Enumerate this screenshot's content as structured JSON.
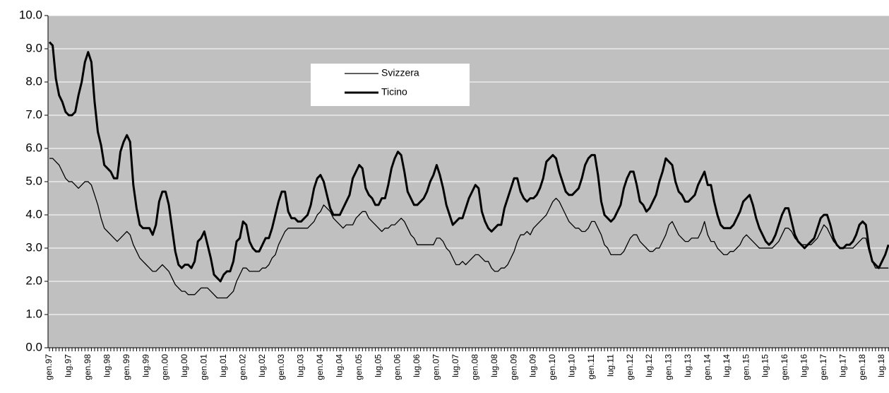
{
  "chart_data": {
    "type": "line",
    "categories": [
      "gen.97",
      null,
      null,
      null,
      null,
      null,
      "lug.97",
      null,
      null,
      null,
      null,
      null,
      "gen.98",
      null,
      null,
      null,
      null,
      null,
      "lug.98",
      null,
      null,
      null,
      null,
      null,
      "gen.99",
      null,
      null,
      null,
      null,
      null,
      "lug.99",
      null,
      null,
      null,
      null,
      null,
      "gen.00",
      null,
      null,
      null,
      null,
      null,
      "lug.00",
      null,
      null,
      null,
      null,
      null,
      "gen.01",
      null,
      null,
      null,
      null,
      null,
      "lug.01",
      null,
      null,
      null,
      null,
      null,
      "gen.02",
      null,
      null,
      null,
      null,
      null,
      "lug.02",
      null,
      null,
      null,
      null,
      null,
      "gen.03",
      null,
      null,
      null,
      null,
      null,
      "lug.03",
      null,
      null,
      null,
      null,
      null,
      "gen.04",
      null,
      null,
      null,
      null,
      null,
      "lug.04",
      null,
      null,
      null,
      null,
      null,
      "gen.05",
      null,
      null,
      null,
      null,
      null,
      "lug.05",
      null,
      null,
      null,
      null,
      null,
      "gen.06",
      null,
      null,
      null,
      null,
      null,
      "lug.06",
      null,
      null,
      null,
      null,
      null,
      "gen.07",
      null,
      null,
      null,
      null,
      null,
      "lug.07",
      null,
      null,
      null,
      null,
      null,
      "gen.08",
      null,
      null,
      null,
      null,
      null,
      "lug.08",
      null,
      null,
      null,
      null,
      null,
      "gen.09",
      null,
      null,
      null,
      null,
      null,
      "lug.09",
      null,
      null,
      null,
      null,
      null,
      "gen.10",
      null,
      null,
      null,
      null,
      null,
      "lug.10",
      null,
      null,
      null,
      null,
      null,
      "gen.11",
      null,
      null,
      null,
      null,
      null,
      "lug.11",
      null,
      null,
      null,
      null,
      null,
      "gen.12",
      null,
      null,
      null,
      null,
      null,
      "lug.12",
      null,
      null,
      null,
      null,
      null,
      "gen.13",
      null,
      null,
      null,
      null,
      null,
      "lug.13",
      null,
      null,
      null,
      null,
      null,
      "gen.14",
      null,
      null,
      null,
      null,
      null,
      "lug.14",
      null,
      null,
      null,
      null,
      null,
      "gen.15",
      null,
      null,
      null,
      null,
      null,
      "lug.15",
      null,
      null,
      null,
      null,
      null,
      "gen.16",
      null,
      null,
      null,
      null,
      null,
      "lug.16",
      null,
      null,
      null,
      null,
      null,
      "gen.17",
      null,
      null,
      null,
      null,
      null,
      "lug.17",
      null,
      null,
      null,
      null,
      null,
      "gen.18",
      null,
      null,
      null,
      null,
      null,
      "lug.18",
      null,
      null
    ],
    "series": [
      {
        "name": "Svizzera",
        "color": "#000000",
        "values": [
          5.7,
          5.7,
          5.6,
          5.5,
          5.3,
          5.1,
          5.0,
          5.0,
          4.9,
          4.8,
          4.9,
          5.0,
          5.0,
          4.9,
          4.6,
          4.3,
          3.9,
          3.6,
          3.5,
          3.4,
          3.3,
          3.2,
          3.3,
          3.4,
          3.5,
          3.4,
          3.1,
          2.9,
          2.7,
          2.6,
          2.5,
          2.4,
          2.3,
          2.3,
          2.4,
          2.5,
          2.4,
          2.3,
          2.1,
          1.9,
          1.8,
          1.7,
          1.7,
          1.6,
          1.6,
          1.6,
          1.7,
          1.8,
          1.8,
          1.8,
          1.7,
          1.6,
          1.5,
          1.5,
          1.5,
          1.5,
          1.6,
          1.7,
          2.0,
          2.2,
          2.4,
          2.4,
          2.3,
          2.3,
          2.3,
          2.3,
          2.4,
          2.4,
          2.5,
          2.7,
          2.8,
          3.1,
          3.3,
          3.5,
          3.6,
          3.6,
          3.6,
          3.6,
          3.6,
          3.6,
          3.6,
          3.7,
          3.8,
          4.0,
          4.1,
          4.3,
          4.2,
          4.1,
          3.9,
          3.8,
          3.7,
          3.6,
          3.7,
          3.7,
          3.7,
          3.9,
          4.0,
          4.1,
          4.1,
          3.9,
          3.8,
          3.7,
          3.6,
          3.5,
          3.6,
          3.6,
          3.7,
          3.7,
          3.8,
          3.9,
          3.8,
          3.6,
          3.4,
          3.3,
          3.1,
          3.1,
          3.1,
          3.1,
          3.1,
          3.1,
          3.3,
          3.3,
          3.2,
          3.0,
          2.9,
          2.7,
          2.5,
          2.5,
          2.6,
          2.5,
          2.6,
          2.7,
          2.8,
          2.8,
          2.7,
          2.6,
          2.6,
          2.4,
          2.3,
          2.3,
          2.4,
          2.4,
          2.5,
          2.7,
          2.9,
          3.2,
          3.4,
          3.4,
          3.5,
          3.4,
          3.6,
          3.7,
          3.8,
          3.9,
          4.0,
          4.2,
          4.4,
          4.5,
          4.4,
          4.2,
          4.0,
          3.8,
          3.7,
          3.6,
          3.6,
          3.5,
          3.5,
          3.6,
          3.8,
          3.8,
          3.6,
          3.4,
          3.1,
          3.0,
          2.8,
          2.8,
          2.8,
          2.8,
          2.9,
          3.1,
          3.3,
          3.4,
          3.4,
          3.2,
          3.1,
          3.0,
          2.9,
          2.9,
          3.0,
          3.0,
          3.2,
          3.4,
          3.7,
          3.8,
          3.6,
          3.4,
          3.3,
          3.2,
          3.2,
          3.3,
          3.3,
          3.3,
          3.5,
          3.8,
          3.4,
          3.2,
          3.2,
          3.0,
          2.9,
          2.8,
          2.8,
          2.9,
          2.9,
          3.0,
          3.1,
          3.3,
          3.4,
          3.3,
          3.2,
          3.1,
          3.0,
          3.0,
          3.0,
          3.0,
          3.0,
          3.1,
          3.2,
          3.4,
          3.6,
          3.6,
          3.5,
          3.3,
          3.2,
          3.1,
          3.1,
          3.1,
          3.1,
          3.2,
          3.3,
          3.5,
          3.7,
          3.6,
          3.4,
          3.2,
          3.1,
          3.0,
          3.0,
          3.0,
          3.0,
          3.0,
          3.1,
          3.2,
          3.3,
          3.3,
          2.9,
          2.6,
          2.4,
          2.4,
          2.4,
          2.4,
          2.4
        ]
      },
      {
        "name": "Ticino",
        "color": "#000000",
        "values": [
          9.2,
          9.1,
          8.1,
          7.6,
          7.4,
          7.1,
          7.0,
          7.0,
          7.1,
          7.6,
          8.0,
          8.6,
          8.9,
          8.6,
          7.4,
          6.5,
          6.1,
          5.5,
          5.4,
          5.3,
          5.1,
          5.1,
          5.9,
          6.2,
          6.4,
          6.2,
          4.9,
          4.2,
          3.7,
          3.6,
          3.6,
          3.6,
          3.4,
          3.7,
          4.4,
          4.7,
          4.7,
          4.3,
          3.6,
          2.9,
          2.5,
          2.4,
          2.5,
          2.5,
          2.4,
          2.6,
          3.2,
          3.3,
          3.5,
          3.1,
          2.7,
          2.2,
          2.1,
          2.0,
          2.2,
          2.3,
          2.3,
          2.6,
          3.2,
          3.3,
          3.8,
          3.7,
          3.2,
          3.0,
          2.9,
          2.9,
          3.1,
          3.3,
          3.3,
          3.6,
          4.0,
          4.4,
          4.7,
          4.7,
          4.1,
          3.9,
          3.9,
          3.8,
          3.8,
          3.9,
          4.0,
          4.3,
          4.8,
          5.1,
          5.2,
          5.0,
          4.6,
          4.2,
          4.0,
          4.0,
          4.0,
          4.2,
          4.4,
          4.6,
          5.1,
          5.3,
          5.5,
          5.4,
          4.8,
          4.6,
          4.5,
          4.3,
          4.3,
          4.5,
          4.5,
          4.9,
          5.4,
          5.7,
          5.9,
          5.8,
          5.3,
          4.7,
          4.5,
          4.3,
          4.3,
          4.4,
          4.5,
          4.7,
          5.0,
          5.2,
          5.5,
          5.2,
          4.8,
          4.3,
          4.0,
          3.7,
          3.8,
          3.9,
          3.9,
          4.2,
          4.5,
          4.7,
          4.9,
          4.8,
          4.1,
          3.8,
          3.6,
          3.5,
          3.6,
          3.7,
          3.7,
          4.2,
          4.5,
          4.8,
          5.1,
          5.1,
          4.7,
          4.5,
          4.4,
          4.5,
          4.5,
          4.6,
          4.8,
          5.1,
          5.6,
          5.7,
          5.8,
          5.7,
          5.3,
          5.0,
          4.7,
          4.6,
          4.6,
          4.7,
          4.8,
          5.1,
          5.5,
          5.7,
          5.8,
          5.8,
          5.2,
          4.4,
          4.0,
          3.9,
          3.8,
          3.9,
          4.1,
          4.3,
          4.8,
          5.1,
          5.3,
          5.3,
          4.9,
          4.4,
          4.3,
          4.1,
          4.2,
          4.4,
          4.6,
          5.0,
          5.3,
          5.7,
          5.6,
          5.5,
          5.0,
          4.7,
          4.6,
          4.4,
          4.4,
          4.5,
          4.6,
          4.9,
          5.1,
          5.3,
          4.9,
          4.9,
          4.4,
          4.0,
          3.7,
          3.6,
          3.6,
          3.6,
          3.7,
          3.9,
          4.1,
          4.4,
          4.5,
          4.6,
          4.3,
          3.9,
          3.6,
          3.4,
          3.2,
          3.1,
          3.2,
          3.4,
          3.7,
          4.0,
          4.2,
          4.2,
          3.8,
          3.4,
          3.2,
          3.1,
          3.0,
          3.1,
          3.2,
          3.3,
          3.6,
          3.9,
          4.0,
          4.0,
          3.7,
          3.3,
          3.1,
          3.0,
          3.0,
          3.1,
          3.1,
          3.2,
          3.4,
          3.7,
          3.8,
          3.7,
          3.0,
          2.6,
          2.5,
          2.4,
          2.6,
          2.8,
          3.1
        ]
      }
    ],
    "ylim": [
      0,
      10
    ],
    "yticks": [
      {
        "value": 0,
        "label": "0.0"
      },
      {
        "value": 1,
        "label": "1.0"
      },
      {
        "value": 2,
        "label": "2.0"
      },
      {
        "value": 3,
        "label": "3.0"
      },
      {
        "value": 4,
        "label": "4.0"
      },
      {
        "value": 5,
        "label": "5.0"
      },
      {
        "value": 6,
        "label": "6.0"
      },
      {
        "value": 7,
        "label": "7.0"
      },
      {
        "value": 8,
        "label": "8.0"
      },
      {
        "value": 9,
        "label": "9.0"
      },
      {
        "value": 10,
        "label": "10.0"
      }
    ],
    "grid": true
  }
}
